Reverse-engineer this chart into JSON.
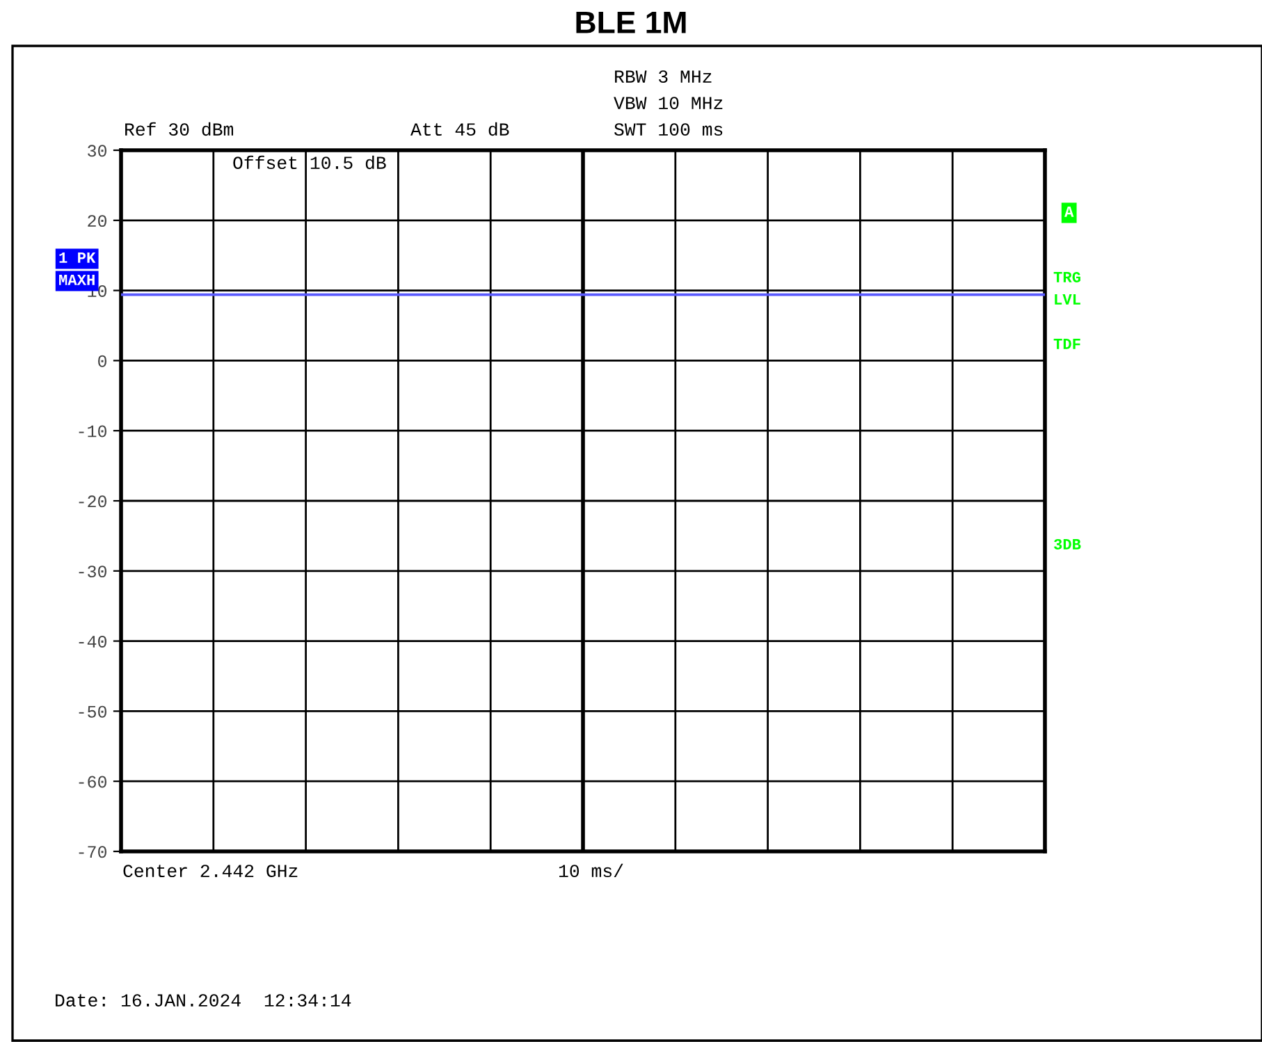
{
  "chart_data": {
    "type": "line",
    "title": "BLE 1M",
    "categories": [
      null,
      null,
      null,
      null,
      null,
      null,
      null,
      null,
      null,
      null,
      null
    ],
    "series": [
      {
        "color": "#5a5aff",
        "values": [
          9.4,
          9.4,
          9.4,
          9.4,
          9.4,
          9.4,
          9.4,
          9.4,
          9.4,
          9.4,
          9.4
        ]
      }
    ],
    "ylim": [
      -70,
      30
    ],
    "yticks": [
      -70,
      -60,
      -50,
      -40,
      -30,
      -20,
      -10,
      0,
      10,
      20,
      30
    ],
    "tick_labels": "y",
    "grid": true,
    "legend": false,
    "marker": "none",
    "line_style": "solid",
    "annotations": [
      "RBW 3 MHz",
      "VBW 10 MHz",
      "SWT 100 ms",
      "Ref 30 dBm",
      "Att 45 dB",
      "Offset 10.5 dB",
      "1 PK",
      "MAXH",
      "A",
      "TRG",
      "LVL",
      "TDF",
      "3DB",
      "Center 2.442 GHz",
      "10 ms/",
      "Date: 16.JAN.2024  12:34:14"
    ]
  }
}
